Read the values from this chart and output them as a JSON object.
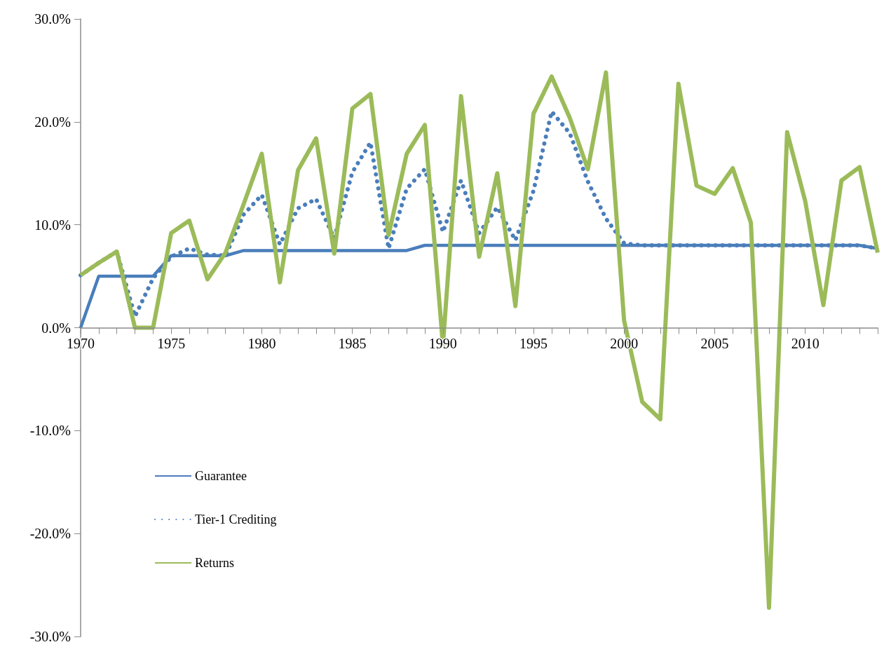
{
  "chart_data": {
    "type": "line",
    "legend": "bottom left",
    "grid": false,
    "marker": "none",
    "x": [
      1970,
      1971,
      1972,
      1973,
      1974,
      1975,
      1976,
      1977,
      1978,
      1979,
      1980,
      1981,
      1982,
      1983,
      1984,
      1985,
      1986,
      1987,
      1988,
      1989,
      1990,
      1991,
      1992,
      1993,
      1994,
      1995,
      1996,
      1997,
      1998,
      1999,
      2000,
      2001,
      2002,
      2003,
      2004,
      2005,
      2006,
      2007,
      2008,
      2009,
      2010,
      2011,
      2012,
      2013,
      2014
    ],
    "xlim": [
      1970,
      2014
    ],
    "xticks": [
      1970,
      {
        "value": 1971,
        "label": null
      },
      {
        "value": 1972,
        "label": null
      },
      {
        "value": 1973,
        "label": null
      },
      {
        "value": 1974,
        "label": null
      },
      1975,
      {
        "value": 1976,
        "label": null
      },
      {
        "value": 1977,
        "label": null
      },
      {
        "value": 1978,
        "label": null
      },
      {
        "value": 1979,
        "label": null
      },
      1980,
      {
        "value": 1981,
        "label": null
      },
      {
        "value": 1982,
        "label": null
      },
      {
        "value": 1983,
        "label": null
      },
      {
        "value": 1984,
        "label": null
      },
      1985,
      {
        "value": 1986,
        "label": null
      },
      {
        "value": 1987,
        "label": null
      },
      {
        "value": 1988,
        "label": null
      },
      {
        "value": 1989,
        "label": null
      },
      1990,
      {
        "value": 1991,
        "label": null
      },
      {
        "value": 1992,
        "label": null
      },
      {
        "value": 1993,
        "label": null
      },
      {
        "value": 1994,
        "label": null
      },
      1995,
      {
        "value": 1996,
        "label": null
      },
      {
        "value": 1997,
        "label": null
      },
      {
        "value": 1998,
        "label": null
      },
      {
        "value": 1999,
        "label": null
      },
      2000,
      {
        "value": 2001,
        "label": null
      },
      {
        "value": 2002,
        "label": null
      },
      {
        "value": 2003,
        "label": null
      },
      {
        "value": 2004,
        "label": null
      },
      2005,
      {
        "value": 2006,
        "label": null
      },
      {
        "value": 2007,
        "label": null
      },
      {
        "value": 2008,
        "label": null
      },
      {
        "value": 2009,
        "label": null
      },
      2010,
      {
        "value": 2011,
        "label": null
      },
      {
        "value": 2012,
        "label": null
      },
      {
        "value": 2013,
        "label": null
      },
      {
        "value": 2014,
        "label": null
      }
    ],
    "ylim": [
      -30,
      30
    ],
    "yticks": [
      {
        "value": -30,
        "label": "-30.0%"
      },
      {
        "value": -20,
        "label": "-20.0%"
      },
      {
        "value": -10,
        "label": "-10.0%"
      },
      {
        "value": 0,
        "label": "0.0%"
      },
      {
        "value": 10,
        "label": "10.0%"
      },
      {
        "value": 20,
        "label": "20.0%"
      },
      {
        "value": 30,
        "label": "30.0%"
      }
    ],
    "series": [
      {
        "name": "Guarantee",
        "color": "#4a7ebb",
        "line_style": "solid",
        "values": [
          0,
          5,
          5,
          5,
          5,
          7,
          7,
          7,
          7,
          7.5,
          7.5,
          7.5,
          7.5,
          7.5,
          7.5,
          7.5,
          7.5,
          7.5,
          7.5,
          8,
          8,
          8,
          8,
          8,
          8,
          8,
          8,
          8,
          8,
          8,
          8,
          8,
          8,
          8,
          8,
          8,
          8,
          8,
          8,
          8,
          8,
          8,
          8,
          8,
          7.7
        ]
      },
      {
        "name": "Tier-1 Crediting",
        "color": "#4a7ebb",
        "line_style": "dotted",
        "values": [
          5.1,
          6.3,
          7.4,
          1.1,
          4.8,
          6.9,
          7.7,
          7.1,
          7.0,
          11.0,
          12.9,
          8.1,
          11.6,
          12.5,
          8.7,
          15.1,
          18.0,
          7.7,
          13.5,
          15.4,
          9.3,
          14.3,
          9.2,
          11.7,
          8.5,
          13.3,
          21.0,
          18.9,
          14.2,
          10.6,
          8.2,
          8,
          8,
          8,
          8,
          8,
          8,
          8,
          8,
          8,
          8,
          8,
          8,
          8,
          7.7
        ]
      },
      {
        "name": "Returns",
        "color": "#9bbb59",
        "line_style": "solid",
        "values": [
          5.1,
          6.3,
          7.4,
          0,
          0,
          9.2,
          10.4,
          4.7,
          7.3,
          12.0,
          16.9,
          4.4,
          15.3,
          18.4,
          7.2,
          21.3,
          22.7,
          9.0,
          16.9,
          19.7,
          -1.7,
          22.5,
          6.9,
          15.0,
          2.1,
          20.8,
          24.4,
          20.4,
          15.4,
          24.8,
          0.7,
          -7.2,
          -8.9,
          23.7,
          13.8,
          13.0,
          15.5,
          10.2,
          -27.2,
          19.0,
          12.3,
          2.2,
          14.3,
          15.6,
          7.3
        ]
      }
    ]
  }
}
